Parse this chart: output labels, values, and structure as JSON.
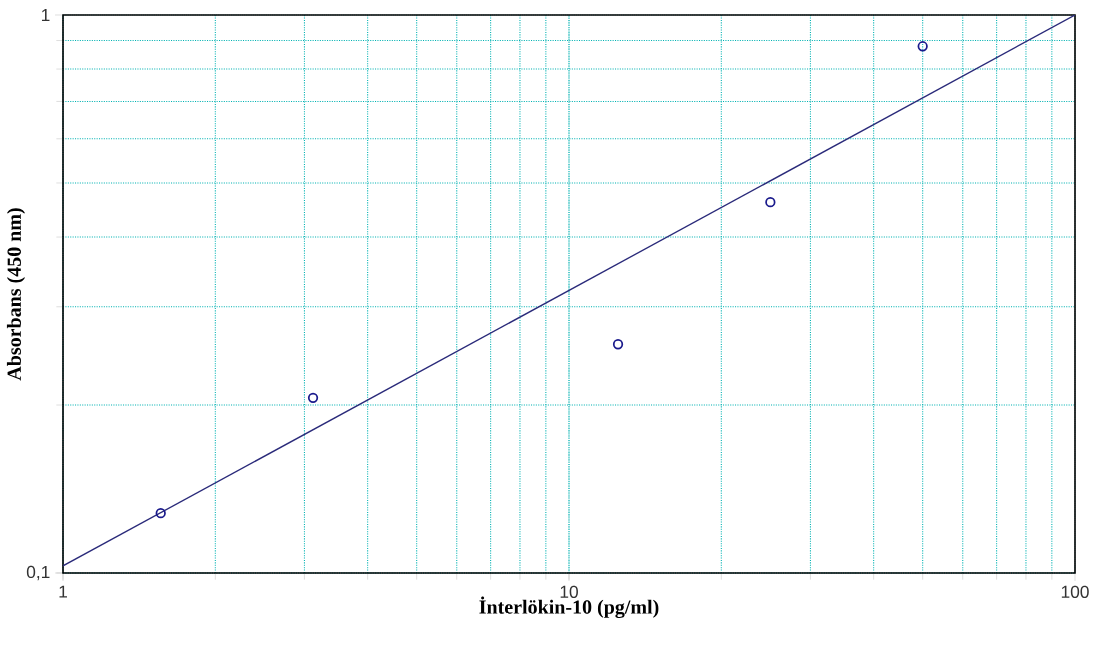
{
  "chart_data": {
    "type": "scatter",
    "xlabel": "İnterlökin-10 (pg/ml)",
    "ylabel": "Absorbans (450 nm)",
    "log": "xy",
    "grid": true,
    "marker": "circle",
    "xlim": [
      1,
      100
    ],
    "ylim": [
      0.1,
      1
    ],
    "xticks": [
      1,
      10,
      100
    ],
    "yticks": [
      {
        "value": 0.1,
        "label": "0,1"
      },
      1
    ],
    "series": [
      {
        "color": "#1a1a8c",
        "x": [
          1.56,
          3.12,
          12.5,
          25,
          50
        ],
        "values": [
          0.128,
          0.206,
          0.257,
          0.462,
          0.879
        ]
      },
      {
        "type": "line",
        "color": "#2a2a7a",
        "marker": "none",
        "x": [
          1,
          100
        ],
        "values": [
          0.103,
          1.0
        ]
      }
    ]
  }
}
